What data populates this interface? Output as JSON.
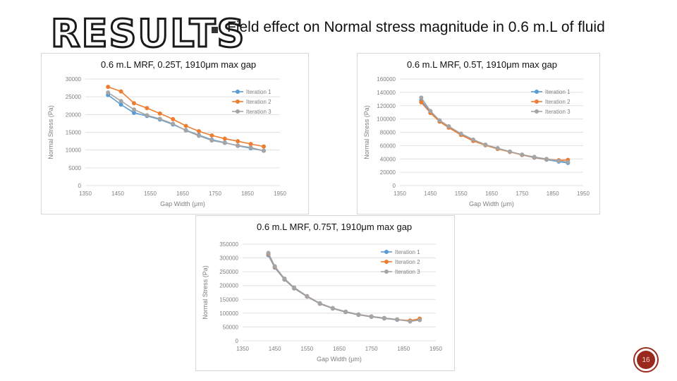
{
  "slide": {
    "title": "RESULTS",
    "subtitle": "Field effect on Normal stress magnitude in 0.6 m.L of fluid",
    "page_number": "16"
  },
  "colors": {
    "iteration_1": "#5b9bd5",
    "iteration_2": "#ed7d31",
    "iteration_3": "#a5a5a5"
  },
  "chart_data": [
    {
      "type": "scatter",
      "title": "0.6 m.L MRF, 0.25T, 1910μm max gap",
      "xlabel": "Gap Width (μm)",
      "ylabel": "Normal Stress (Pa)",
      "xlim": [
        1350,
        1950
      ],
      "ylim": [
        0,
        30000
      ],
      "xticks": [
        1350,
        1450,
        1550,
        1650,
        1750,
        1850,
        1950
      ],
      "yticks": [
        0,
        5000,
        10000,
        15000,
        20000,
        25000,
        30000
      ],
      "legend": "right",
      "series": [
        {
          "name": "Iteration 1",
          "x": [
            1420,
            1460,
            1500,
            1540,
            1580,
            1620,
            1660,
            1700,
            1740,
            1780,
            1820,
            1860,
            1900
          ],
          "y": [
            25500,
            22800,
            20500,
            19600,
            18600,
            17200,
            15600,
            14200,
            12900,
            12100,
            11200,
            10500,
            9800
          ]
        },
        {
          "name": "Iteration 2",
          "x": [
            1420,
            1460,
            1500,
            1540,
            1580,
            1620,
            1660,
            1700,
            1740,
            1780,
            1820,
            1860,
            1900
          ],
          "y": [
            27800,
            26500,
            23200,
            21800,
            20300,
            18700,
            16800,
            15300,
            14100,
            13200,
            12500,
            11700,
            11000
          ]
        },
        {
          "name": "Iteration 3",
          "x": [
            1420,
            1460,
            1500,
            1540,
            1580,
            1620,
            1660,
            1700,
            1740,
            1780,
            1820,
            1860,
            1900
          ],
          "y": [
            26200,
            23800,
            21400,
            19800,
            18800,
            17400,
            15500,
            14000,
            12700,
            12000,
            11300,
            10700,
            9800
          ]
        }
      ]
    },
    {
      "type": "scatter",
      "title": "0.6 m.L MRF, 0.5T, 1910μm max gap",
      "xlabel": "Gap Width (μm)",
      "ylabel": "Normal Stress (Pa)",
      "xlim": [
        1350,
        1950
      ],
      "ylim": [
        0,
        160000
      ],
      "xticks": [
        1350,
        1450,
        1550,
        1650,
        1750,
        1850,
        1950
      ],
      "yticks": [
        0,
        20000,
        40000,
        60000,
        80000,
        100000,
        120000,
        140000,
        160000
      ],
      "legend": "right",
      "series": [
        {
          "name": "Iteration 1",
          "x": [
            1420,
            1450,
            1480,
            1510,
            1550,
            1590,
            1630,
            1670,
            1710,
            1750,
            1790,
            1830,
            1870,
            1900
          ],
          "y": [
            128000,
            110000,
            97000,
            88000,
            77000,
            68000,
            61000,
            56000,
            51000,
            46000,
            42000,
            39000,
            36000,
            34000
          ]
        },
        {
          "name": "Iteration 2",
          "x": [
            1420,
            1450,
            1480,
            1510,
            1550,
            1590,
            1630,
            1670,
            1710,
            1750,
            1790,
            1830,
            1870,
            1900
          ],
          "y": [
            125000,
            109000,
            96000,
            87000,
            76000,
            67000,
            60500,
            55000,
            50500,
            46000,
            42500,
            39500,
            38000,
            38500
          ]
        },
        {
          "name": "Iteration 3",
          "x": [
            1420,
            1450,
            1480,
            1510,
            1550,
            1590,
            1630,
            1670,
            1710,
            1750,
            1790,
            1830,
            1870,
            1900
          ],
          "y": [
            132000,
            112000,
            98000,
            89000,
            78000,
            69000,
            61500,
            56000,
            51000,
            46500,
            43000,
            40000,
            37000,
            35500
          ]
        }
      ]
    },
    {
      "type": "scatter",
      "title": "0.6 m.L MRF, 0.75T, 1910μm max gap",
      "xlabel": "Gap Width (μm)",
      "ylabel": "Normal Stress (Pa)",
      "xlim": [
        1350,
        1950
      ],
      "ylim": [
        0,
        350000
      ],
      "xticks": [
        1350,
        1450,
        1550,
        1650,
        1750,
        1850,
        1950
      ],
      "yticks": [
        0,
        50000,
        100000,
        150000,
        200000,
        250000,
        300000,
        350000
      ],
      "legend": "right",
      "series": [
        {
          "name": "Iteration 1",
          "x": [
            1430,
            1450,
            1480,
            1510,
            1550,
            1590,
            1630,
            1670,
            1710,
            1750,
            1790,
            1830,
            1870,
            1900
          ],
          "y": [
            310000,
            265000,
            222000,
            190000,
            160000,
            134000,
            117000,
            104000,
            94000,
            87000,
            81000,
            76000,
            72000,
            78000
          ]
        },
        {
          "name": "Iteration 2",
          "x": [
            1430,
            1450,
            1480,
            1510,
            1550,
            1590,
            1630,
            1670,
            1710,
            1750,
            1790,
            1830,
            1870,
            1900
          ],
          "y": [
            315000,
            268000,
            224000,
            192000,
            161000,
            135000,
            118000,
            105000,
            95000,
            88000,
            82000,
            77000,
            73000,
            80000
          ]
        },
        {
          "name": "Iteration 3",
          "x": [
            1430,
            1450,
            1480,
            1510,
            1550,
            1590,
            1630,
            1670,
            1710,
            1750,
            1790,
            1830,
            1870,
            1900
          ],
          "y": [
            318000,
            270000,
            225000,
            193000,
            162000,
            136000,
            118500,
            105500,
            95500,
            88500,
            82500,
            77500,
            70000,
            75000
          ]
        }
      ]
    }
  ]
}
